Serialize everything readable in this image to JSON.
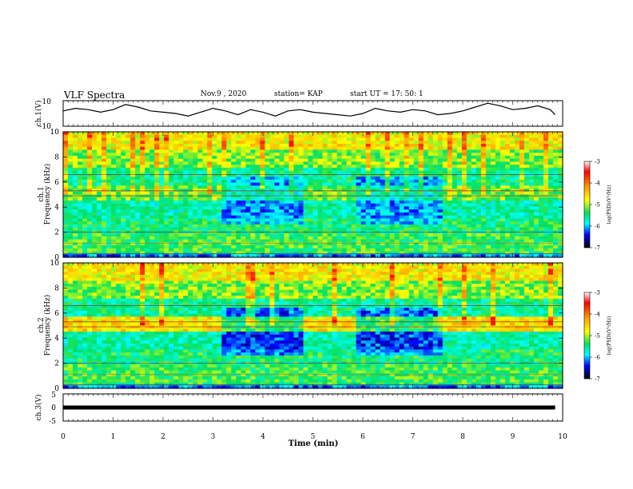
{
  "header": {
    "title": "VLF Spectra",
    "date": "Nov.9 , 2020",
    "station": "station= KAP",
    "start": "start UT = 17: 50: 1"
  },
  "chart_data": [
    {
      "type": "line",
      "ylabel": "ch.1(V)",
      "ylim": [
        -10,
        10
      ],
      "y_ticks": [
        "10",
        "-10"
      ],
      "x": [
        0,
        0.25,
        0.5,
        0.75,
        1,
        1.25,
        1.5,
        1.75,
        2,
        2.25,
        2.5,
        2.75,
        3,
        3.25,
        3.5,
        3.75,
        4,
        4.25,
        4.5,
        4.75,
        5,
        5.25,
        5.5,
        5.75,
        6,
        6.25,
        6.5,
        6.75,
        7,
        7.25,
        7.5,
        7.75,
        8,
        8.25,
        8.5,
        8.75,
        9,
        9.25,
        9.5,
        9.75,
        9.85
      ],
      "y": [
        2,
        4,
        3,
        1,
        3,
        7,
        5,
        2,
        1,
        0,
        -2,
        1,
        4,
        2,
        -1,
        3,
        1,
        -2,
        2,
        3,
        1,
        0,
        -1,
        -2,
        0,
        4,
        2,
        1,
        3,
        2,
        -1,
        0,
        2,
        5,
        8,
        6,
        3,
        4,
        6,
        3,
        -1
      ],
      "line_color": "#000000"
    },
    {
      "type": "heatmap",
      "ylabel": "Frequency (kHz)",
      "channel_label": "ch.1",
      "ylim": [
        0,
        10
      ],
      "y_ticks": [
        "0",
        "2",
        "4",
        "6",
        "8",
        "10"
      ],
      "colorbar": {
        "label": "log(PSD)(V²/Hz)",
        "range": [
          -7,
          -3
        ],
        "ticks": [
          "-3",
          "-4",
          "-5",
          "-6",
          "-7"
        ]
      }
    },
    {
      "type": "heatmap",
      "ylabel": "Frequency (kHz)",
      "channel_label": "ch.2",
      "ylim": [
        0,
        10
      ],
      "y_ticks": [
        "0",
        "2",
        "4",
        "6",
        "8",
        "10"
      ],
      "colorbar": {
        "label": "log(PSD)(V²/Hz)",
        "range": [
          -7,
          -3
        ],
        "ticks": [
          "-3",
          "-4",
          "-5",
          "-6",
          "-7"
        ]
      }
    },
    {
      "type": "line",
      "ylabel": "ch.3(V)",
      "ylim": [
        -5,
        5
      ],
      "y_ticks": [
        "5",
        "0",
        "-5"
      ],
      "x": [
        0,
        9.85
      ],
      "y": [
        0,
        0
      ],
      "line_color": "#000000"
    }
  ],
  "x_axis": {
    "xlabel": "Time (min)",
    "xlim": [
      0,
      10
    ],
    "tick_labels": [
      "0",
      "1",
      "2",
      "3",
      "4",
      "5",
      "6",
      "7",
      "8",
      "9",
      "10"
    ]
  }
}
